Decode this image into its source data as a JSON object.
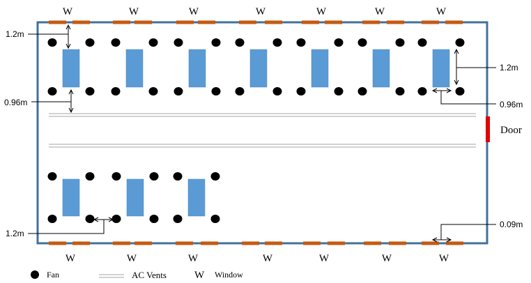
{
  "colors": {
    "wall": "#41719C",
    "window": "#C55A11",
    "desk": "#5B9BD5",
    "fan": "#000000",
    "door": "#E00000",
    "vent": "#A6A6A6"
  },
  "window_label": "W",
  "door_label": "Door",
  "dimensions": {
    "top_left_gap": "1.2m",
    "left_bottom_gap": "0.96m",
    "right_desk_length": "1.2m",
    "right_fan_gap": "0.96m",
    "bottom_left_gap": "1.2m",
    "bottom_right_gap": "0.09m"
  },
  "legend": {
    "fan": "Fan",
    "vents": "AC Vents",
    "window_symbol": "W",
    "window": "Window"
  }
}
